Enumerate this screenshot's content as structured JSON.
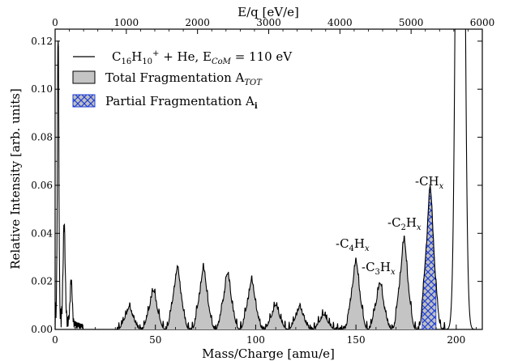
{
  "chart_data": {
    "type": "line",
    "xlabel": "Mass/Charge [amu/e]",
    "ylabel": "Relative Intensity [arb. units]",
    "top_xlabel": "E/q [eV/e]",
    "xlim": [
      0,
      213
    ],
    "ylim": [
      0,
      0.125
    ],
    "top_xlim": [
      0,
      6000
    ],
    "x_ticks": [
      "0",
      "50",
      "100",
      "150",
      "200"
    ],
    "y_ticks": [
      "0.00",
      "0.02",
      "0.04",
      "0.06",
      "0.08",
      "0.10",
      "0.12"
    ],
    "top_ticks": [
      "0",
      "1000",
      "2000",
      "3000",
      "4000",
      "5000",
      "6000"
    ],
    "legend": {
      "position": "top-left",
      "entries": [
        {
          "symbol": "line",
          "text": "C16H10+ + He, ECoM = 110 eV"
        },
        {
          "symbol": "gray-box",
          "text": "Total Fragmentation ATOT"
        },
        {
          "symbol": "hatched-box",
          "text": "Partial Fragmentation Ai"
        }
      ]
    },
    "annotations": [
      {
        "text": "-CHx",
        "x": 185.5,
        "y": 0.063
      },
      {
        "text": "-C2Hx",
        "x": 174.5,
        "y": 0.043
      },
      {
        "text": "-C4Hx",
        "x": 150,
        "y": 0.033
      },
      {
        "text": "-C3Hx",
        "x": 162.5,
        "y": 0.024
      }
    ],
    "series": [
      {
        "name": "C16H10+ + He, ECoM = 110 eV",
        "peaks": [
          {
            "x": 1.5,
            "y": 0.12
          },
          {
            "x": 4.5,
            "y": 0.04
          },
          {
            "x": 8,
            "y": 0.018
          },
          {
            "x": 37,
            "y": 0.009
          },
          {
            "x": 49,
            "y": 0.016
          },
          {
            "x": 61,
            "y": 0.025
          },
          {
            "x": 74,
            "y": 0.025
          },
          {
            "x": 86,
            "y": 0.023
          },
          {
            "x": 98,
            "y": 0.02
          },
          {
            "x": 110,
            "y": 0.01
          },
          {
            "x": 122,
            "y": 0.009
          },
          {
            "x": 134,
            "y": 0.006
          },
          {
            "x": 150,
            "y": 0.028
          },
          {
            "x": 162,
            "y": 0.019
          },
          {
            "x": 174,
            "y": 0.037
          },
          {
            "x": 187,
            "y": 0.058
          },
          {
            "x": 202,
            "y": 0.5
          }
        ]
      }
    ],
    "partial_fragmentation_region": [
      183,
      190
    ]
  }
}
